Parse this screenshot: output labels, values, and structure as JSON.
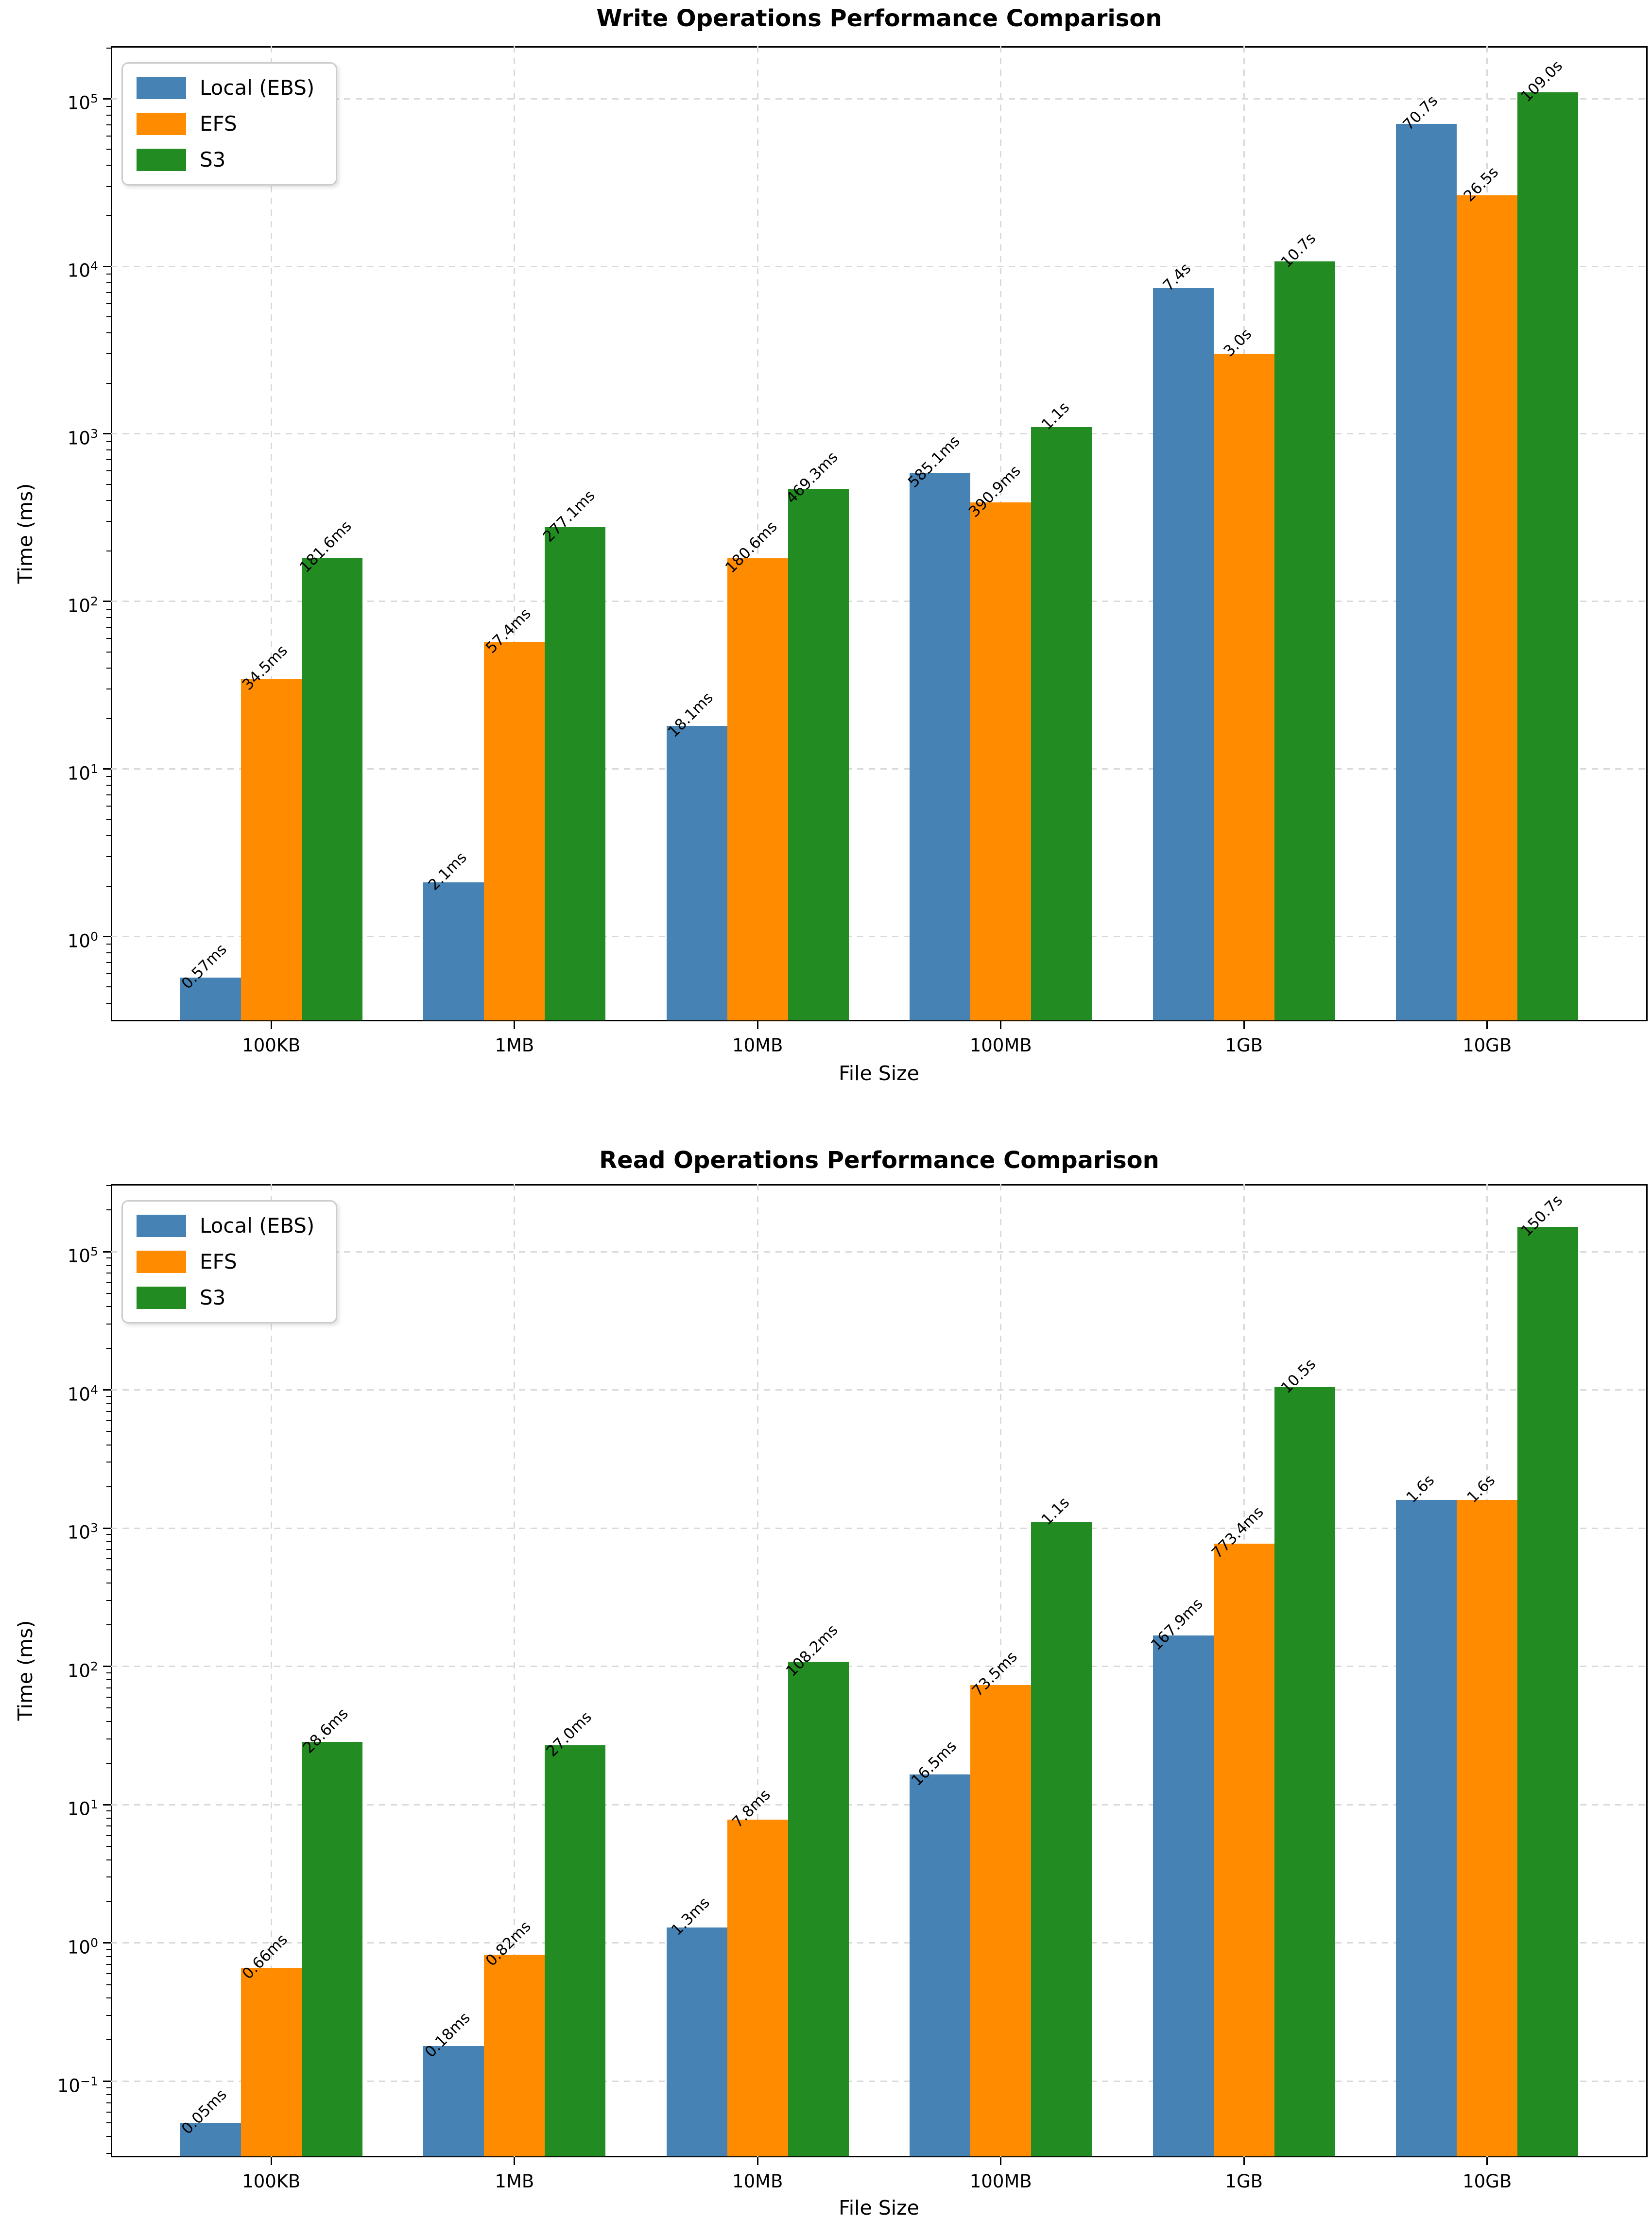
{
  "figure": {
    "background": "#ffffff",
    "text_color": "#000000",
    "grid_color": "#d9d9d9",
    "spine_color": "#000000"
  },
  "legend": {
    "items": [
      {
        "label": "Local (EBS)",
        "color": "#4682B4"
      },
      {
        "label": "EFS",
        "color": "#FF8C00"
      },
      {
        "label": "S3",
        "color": "#228B22"
      }
    ]
  },
  "chart_data": [
    {
      "type": "bar",
      "title": "Write Operations Performance Comparison",
      "xlabel": "File Size",
      "ylabel": "Time (ms)",
      "yscale": "log",
      "ylim": [
        0.312,
        206000
      ],
      "ytick_exponents": [
        0,
        1,
        2,
        3,
        4,
        5
      ],
      "grid": true,
      "legend_position": "upper left",
      "categories": [
        "100KB",
        "1MB",
        "10MB",
        "100MB",
        "1GB",
        "10GB"
      ],
      "series": [
        {
          "name": "Local (EBS)",
          "color": "#4682B4",
          "values": [
            0.57,
            2.1,
            18.1,
            585.1,
            7400,
            70700
          ],
          "labels": [
            "0.57ms",
            "2.1ms",
            "18.1ms",
            "585.1ms",
            "7.4s",
            "70.7s"
          ]
        },
        {
          "name": "EFS",
          "color": "#FF8C00",
          "values": [
            34.5,
            57.4,
            180.6,
            390.9,
            3000,
            26500
          ],
          "labels": [
            "34.5ms",
            "57.4ms",
            "180.6ms",
            "390.9ms",
            "3.0s",
            "26.5s"
          ]
        },
        {
          "name": "S3",
          "color": "#228B22",
          "values": [
            181.6,
            277.1,
            469.3,
            1100,
            10700,
            109000
          ],
          "labels": [
            "181.6ms",
            "277.1ms",
            "469.3ms",
            "1.1s",
            "10.7s",
            "109.0s"
          ]
        }
      ]
    },
    {
      "type": "bar",
      "title": "Read Operations Performance Comparison",
      "xlabel": "File Size",
      "ylabel": "Time (ms)",
      "yscale": "log",
      "ylim": [
        0.0282,
        308000
      ],
      "ytick_exponents": [
        -1,
        0,
        1,
        2,
        3,
        4,
        5
      ],
      "grid": true,
      "legend_position": "upper left",
      "categories": [
        "100KB",
        "1MB",
        "10MB",
        "100MB",
        "1GB",
        "10GB"
      ],
      "series": [
        {
          "name": "Local (EBS)",
          "color": "#4682B4",
          "values": [
            0.05,
            0.18,
            1.3,
            16.5,
            167.9,
            1600
          ],
          "labels": [
            "0.05ms",
            "0.18ms",
            "1.3ms",
            "16.5ms",
            "167.9ms",
            "1.6s"
          ]
        },
        {
          "name": "EFS",
          "color": "#FF8C00",
          "values": [
            0.66,
            0.82,
            7.8,
            73.5,
            773.4,
            1600
          ],
          "labels": [
            "0.66ms",
            "0.82ms",
            "7.8ms",
            "73.5ms",
            "773.4ms",
            "1.6s"
          ]
        },
        {
          "name": "S3",
          "color": "#228B22",
          "values": [
            28.6,
            27.0,
            108.2,
            1100,
            10500,
            150700
          ],
          "labels": [
            "28.6ms",
            "27.0ms",
            "108.2ms",
            "1.1s",
            "10.5s",
            "150.7s"
          ]
        }
      ]
    }
  ]
}
